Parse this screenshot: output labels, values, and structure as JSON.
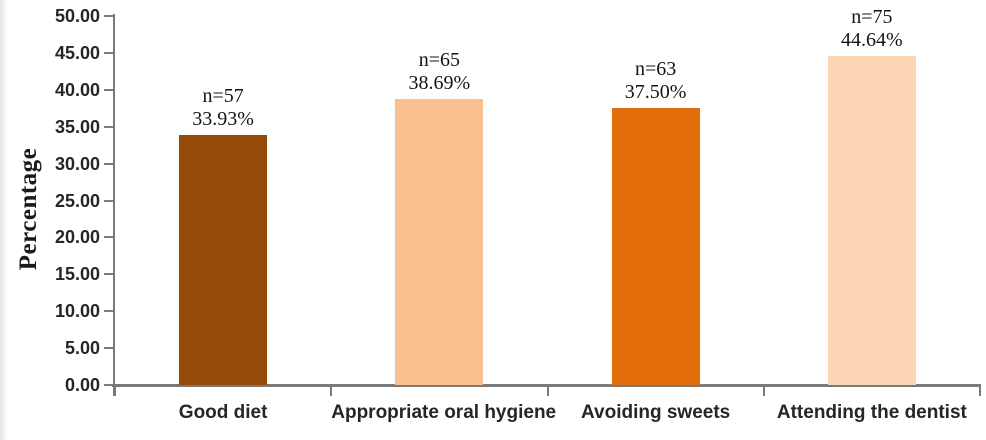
{
  "chart_data": {
    "type": "bar",
    "title": "",
    "ylabel": "Percentage",
    "xlabel": "",
    "categories": [
      "Good diet",
      "Appropriate oral hygiene",
      "Avoiding sweets",
      "Attending the dentist"
    ],
    "values": [
      33.93,
      38.69,
      37.5,
      44.64
    ],
    "counts": [
      57,
      65,
      63,
      75
    ],
    "bar_labels": [
      [
        "n=57",
        "33.93%"
      ],
      [
        "n=65",
        "38.69%"
      ],
      [
        "n=63",
        "37.50%"
      ],
      [
        "n=75",
        "44.64%"
      ]
    ],
    "bar_colors": [
      "#964A09",
      "#FABF8F",
      "#E36C0A",
      "#FCD5B4"
    ],
    "ylim": [
      0,
      50
    ],
    "ytick_labels": [
      "50.00",
      "45.00",
      "40.00",
      "35.00",
      "30.00",
      "25.00",
      "20.00",
      "15.00",
      "10.00",
      "5.00",
      "0.00"
    ],
    "grid": false,
    "legend": false,
    "axis_color": "#7a7a7a"
  }
}
